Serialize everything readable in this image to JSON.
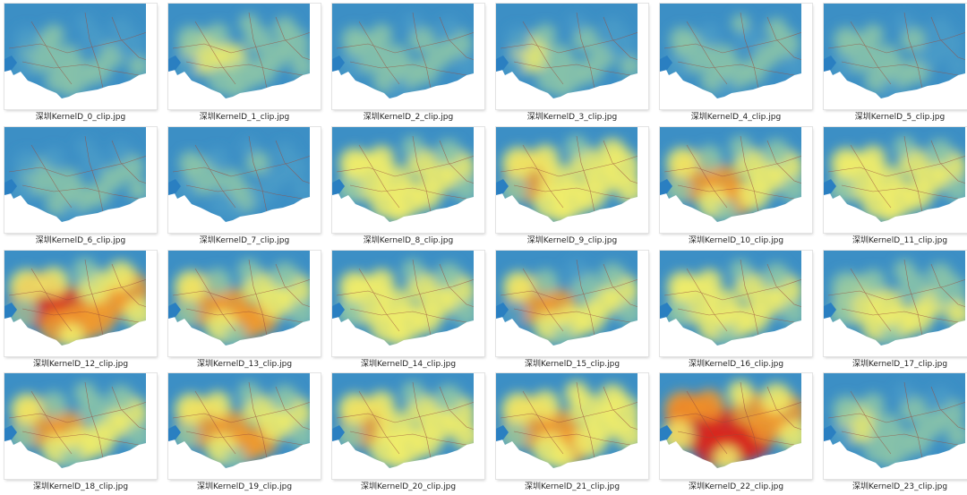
{
  "files": [
    {
      "name": "深圳KernelD_0_clip.jpg",
      "level": 0.3,
      "icon": "heatmap-thumbnail-icon"
    },
    {
      "name": "深圳KernelD_1_clip.jpg",
      "level": 0.45,
      "icon": "heatmap-thumbnail-icon"
    },
    {
      "name": "深圳KernelD_2_clip.jpg",
      "level": 0.35,
      "icon": "heatmap-thumbnail-icon"
    },
    {
      "name": "深圳KernelD_3_clip.jpg",
      "level": 0.33,
      "icon": "heatmap-thumbnail-icon"
    },
    {
      "name": "深圳KernelD_4_clip.jpg",
      "level": 0.32,
      "icon": "heatmap-thumbnail-icon"
    },
    {
      "name": "深圳KernelD_5_clip.jpg",
      "level": 0.3,
      "icon": "heatmap-thumbnail-icon"
    },
    {
      "name": "深圳KernelD_6_clip.jpg",
      "level": 0.28,
      "icon": "heatmap-thumbnail-icon"
    },
    {
      "name": "深圳KernelD_7_clip.jpg",
      "level": 0.22,
      "icon": "heatmap-thumbnail-icon"
    },
    {
      "name": "深圳KernelD_8_clip.jpg",
      "level": 0.6,
      "icon": "heatmap-thumbnail-icon"
    },
    {
      "name": "深圳KernelD_9_clip.jpg",
      "level": 0.7,
      "icon": "heatmap-thumbnail-icon"
    },
    {
      "name": "深圳KernelD_10_clip.jpg",
      "level": 0.65,
      "icon": "heatmap-thumbnail-icon"
    },
    {
      "name": "深圳KernelD_11_clip.jpg",
      "level": 0.6,
      "icon": "heatmap-thumbnail-icon"
    },
    {
      "name": "深圳KernelD_12_clip.jpg",
      "level": 0.85,
      "icon": "heatmap-thumbnail-icon"
    },
    {
      "name": "深圳KernelD_13_clip.jpg",
      "level": 0.7,
      "icon": "heatmap-thumbnail-icon"
    },
    {
      "name": "深圳KernelD_14_clip.jpg",
      "level": 0.62,
      "icon": "heatmap-thumbnail-icon"
    },
    {
      "name": "深圳KernelD_15_clip.jpg",
      "level": 0.6,
      "icon": "heatmap-thumbnail-icon"
    },
    {
      "name": "深圳KernelD_16_clip.jpg",
      "level": 0.58,
      "icon": "heatmap-thumbnail-icon"
    },
    {
      "name": "深圳KernelD_17_clip.jpg",
      "level": 0.58,
      "icon": "heatmap-thumbnail-icon"
    },
    {
      "name": "深圳KernelD_18_clip.jpg",
      "level": 0.65,
      "icon": "heatmap-thumbnail-icon"
    },
    {
      "name": "深圳KernelD_19_clip.jpg",
      "level": 0.65,
      "icon": "heatmap-thumbnail-icon"
    },
    {
      "name": "深圳KernelD_20_clip.jpg",
      "level": 0.68,
      "icon": "heatmap-thumbnail-icon"
    },
    {
      "name": "深圳KernelD_21_clip.jpg",
      "level": 0.75,
      "icon": "heatmap-thumbnail-icon"
    },
    {
      "name": "深圳KernelD_22_clip.jpg",
      "level": 0.9,
      "icon": "heatmap-thumbnail-icon"
    },
    {
      "name": "深圳KernelD_23_clip.jpg",
      "level": 0.4,
      "icon": "heatmap-thumbnail-icon"
    }
  ],
  "colors": {
    "background": "#ffffff",
    "water": "#2a7fc1",
    "cold": "#4a9cc8",
    "cool": "#8cc6a8",
    "warm": "#f2ef6a",
    "hot": "#f39a2b",
    "hottest": "#d9261c",
    "road": "#9a4a3a",
    "sea": "#ffffff"
  }
}
